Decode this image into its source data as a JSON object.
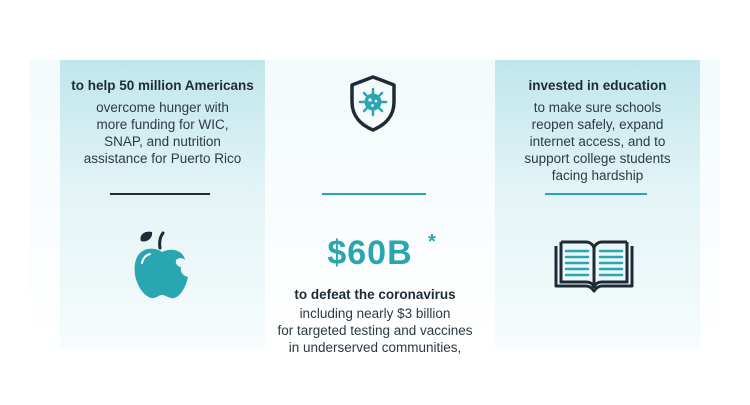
{
  "left": {
    "heading": "to help 50 million Americans",
    "body": [
      "overcome hunger with",
      "more funding for WIC,",
      "SNAP, and nutrition",
      "assistance for Puerto Rico"
    ],
    "icon": "apple-icon"
  },
  "center": {
    "amount": "$60B",
    "asterisk": "*",
    "heading": "to defeat the coronavirus",
    "body": [
      "including nearly $3 billion",
      "for targeted testing and vaccines",
      "in underserved communities,"
    ],
    "icon": "virus-shield-icon"
  },
  "right": {
    "heading": "invested in education",
    "body": [
      "to make sure schools",
      "reopen safely, expand",
      "internet access, and to",
      "support college students",
      "facing hardship"
    ],
    "icon": "open-book-icon"
  },
  "colors": {
    "accent": "#2aa6b3",
    "text_dark": "#1d2b36",
    "panel_top": "#bfe6ec"
  }
}
